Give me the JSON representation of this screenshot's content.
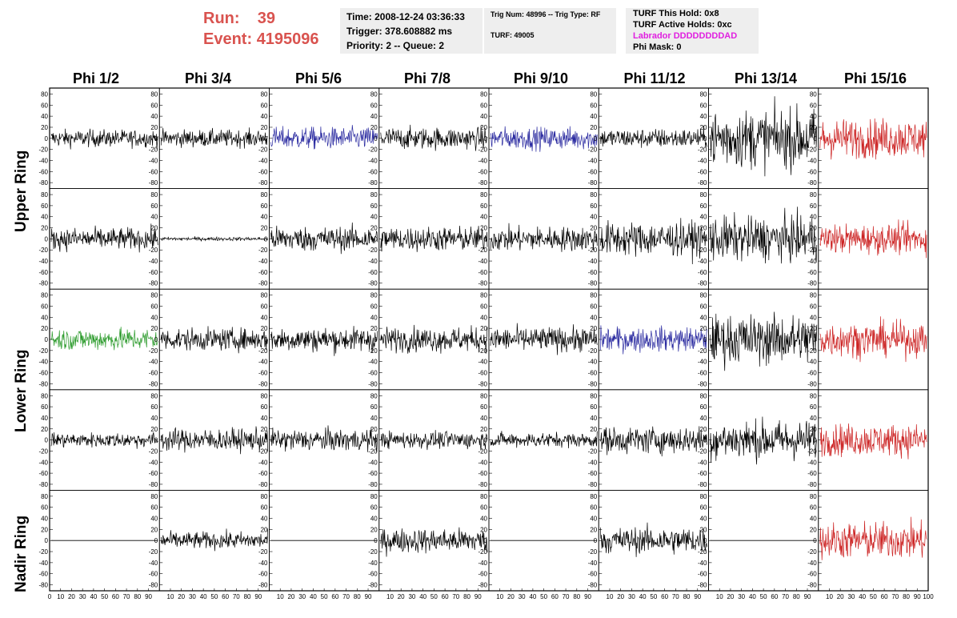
{
  "run": {
    "run_label": "Run:",
    "run_value": "39",
    "event_label": "Event:",
    "event_value": "4195096"
  },
  "info1": {
    "time": "Time: 2008-12-24 03:36:33",
    "trigger": "Trigger: 378.608882 ms",
    "priority": "Priority: 2 -- Queue: 2"
  },
  "info2": {
    "trig": "Trig Num: 48996 -- Trig Type: RF",
    "turf": "TURF: 49005"
  },
  "info3": {
    "hold": "TURF This Hold: 0x8",
    "active": "TURF Active Holds: 0xc",
    "labrador": "Labrador DDDDDDDDAD",
    "phimask": "Phi Mask: 0"
  },
  "columns": [
    "Phi 1/2",
    "Phi 3/4",
    "Phi 5/6",
    "Phi 7/8",
    "Phi 9/10",
    "Phi 11/12",
    "Phi 13/14",
    "Phi 15/16"
  ],
  "rows": [
    "Upper Ring",
    "Lower Ring",
    "Nadir Ring"
  ],
  "y_ticks": [
    "80",
    "60",
    "40",
    "20",
    "0",
    "-20",
    "-40",
    "-60",
    "-80"
  ],
  "x_ticks": [
    "0",
    "10",
    "20",
    "30",
    "40",
    "50",
    "60",
    "70",
    "80",
    "90",
    "100"
  ],
  "colors": {
    "black": "#000000",
    "blue": "#2a2aa0",
    "green": "#2a9a2a",
    "red": "#cc2222",
    "title_red": "#d9534f",
    "magenta": "#e020e0"
  },
  "chart_data": {
    "type": "line",
    "xlim": [
      0,
      100
    ],
    "ylim": [
      -85,
      85
    ],
    "grid": false,
    "traces": [
      [
        "black",
        14,
        "black",
        14,
        "blue",
        18,
        "black",
        18,
        "blue",
        18,
        "black",
        16,
        "black",
        48,
        "red",
        32
      ],
      [
        "black",
        18,
        "black",
        3,
        "black",
        20,
        "black",
        20,
        "black",
        20,
        "black",
        28,
        "black",
        36,
        "red",
        24
      ],
      [
        "green",
        18,
        "black",
        18,
        "black",
        20,
        "black",
        20,
        "black",
        20,
        "blue",
        20,
        "black",
        40,
        "red",
        28
      ],
      [
        "black",
        12,
        "black",
        18,
        "black",
        18,
        "black",
        14,
        "black",
        12,
        "black",
        22,
        "black",
        32,
        "red",
        26
      ],
      [
        "black",
        0,
        "black",
        14,
        "black",
        0,
        "black",
        20,
        "black",
        0,
        "black",
        22,
        "black",
        0,
        "red",
        30
      ]
    ]
  }
}
